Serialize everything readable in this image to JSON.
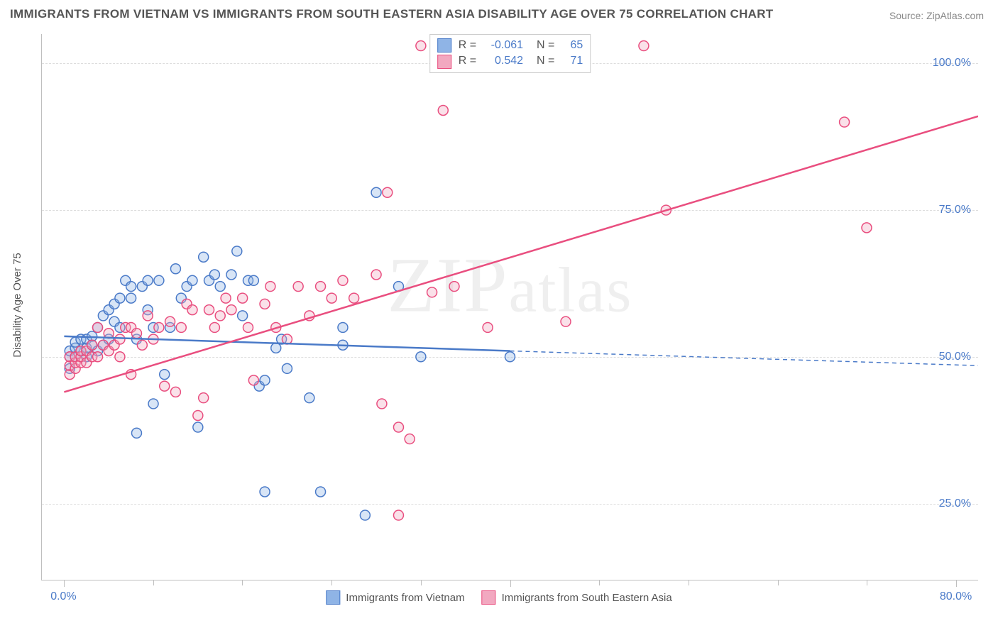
{
  "title": "IMMIGRANTS FROM VIETNAM VS IMMIGRANTS FROM SOUTH EASTERN ASIA DISABILITY AGE OVER 75 CORRELATION CHART",
  "source_prefix": "Source: ",
  "source_name": "ZipAtlas.com",
  "ylabel": "Disability Age Over 75",
  "watermark_parts": [
    "ZIP",
    "atlas"
  ],
  "chart": {
    "type": "scatter",
    "xlim": [
      -2,
      82
    ],
    "ylim": [
      12,
      105
    ],
    "xticks": [
      0,
      40,
      80
    ],
    "xtick_labels": [
      "0.0%",
      "",
      "80.0%"
    ],
    "xminor_ticks": [
      8,
      16,
      24,
      32,
      48,
      56,
      64,
      72
    ],
    "yticks": [
      25,
      50,
      75,
      100
    ],
    "ytick_labels": [
      "25.0%",
      "50.0%",
      "75.0%",
      "100.0%"
    ],
    "grid_color": "#dddddd",
    "axis_color": "#bfbfbf",
    "background_color": "#ffffff",
    "marker_radius": 7,
    "marker_fill_opacity": 0.35,
    "marker_stroke_width": 1.5,
    "line_width": 2.5,
    "series": [
      {
        "name": "Immigrants from Vietnam",
        "color_fill": "#8fb4e6",
        "color_stroke": "#4a7ac8",
        "trend": {
          "x1": 0,
          "y1": 53.5,
          "x2": 40,
          "y2": 51.0,
          "dash_x2": 82,
          "dash_y2": 48.5
        },
        "stats": {
          "R": "-0.061",
          "N": "65"
        },
        "points": [
          [
            0.5,
            48
          ],
          [
            0.5,
            50
          ],
          [
            0.5,
            51
          ],
          [
            1,
            50
          ],
          [
            1,
            51.5
          ],
          [
            1,
            52.5
          ],
          [
            1.5,
            51
          ],
          [
            1.5,
            53
          ],
          [
            2,
            50
          ],
          [
            2,
            51.5
          ],
          [
            2,
            53
          ],
          [
            2.5,
            52
          ],
          [
            2.5,
            53.5
          ],
          [
            3,
            51
          ],
          [
            3,
            55
          ],
          [
            3.5,
            52
          ],
          [
            3.5,
            57
          ],
          [
            4,
            53
          ],
          [
            4,
            58
          ],
          [
            4.5,
            56
          ],
          [
            4.5,
            59
          ],
          [
            5,
            60
          ],
          [
            5,
            55
          ],
          [
            5.5,
            63
          ],
          [
            6,
            60
          ],
          [
            6,
            62
          ],
          [
            6.5,
            53
          ],
          [
            6.5,
            37
          ],
          [
            7,
            62
          ],
          [
            7.5,
            63
          ],
          [
            7.5,
            58
          ],
          [
            8,
            42
          ],
          [
            8,
            55
          ],
          [
            8.5,
            63
          ],
          [
            9,
            47
          ],
          [
            9.5,
            55
          ],
          [
            10,
            65
          ],
          [
            10.5,
            60
          ],
          [
            11,
            62
          ],
          [
            11.5,
            63
          ],
          [
            12,
            38
          ],
          [
            12.5,
            67
          ],
          [
            13,
            63
          ],
          [
            13.5,
            64
          ],
          [
            14,
            62
          ],
          [
            15,
            64
          ],
          [
            15.5,
            68
          ],
          [
            16,
            57
          ],
          [
            16.5,
            63
          ],
          [
            17,
            63
          ],
          [
            17.5,
            45
          ],
          [
            18,
            46
          ],
          [
            18,
            27
          ],
          [
            19,
            51.5
          ],
          [
            19.5,
            53
          ],
          [
            20,
            48
          ],
          [
            22,
            43
          ],
          [
            23,
            27
          ],
          [
            25,
            52
          ],
          [
            25,
            55
          ],
          [
            27,
            23
          ],
          [
            28,
            78
          ],
          [
            30,
            62
          ],
          [
            32,
            50
          ],
          [
            40,
            50
          ]
        ]
      },
      {
        "name": "Immigrants from South Eastern Asia",
        "color_fill": "#f2a8c0",
        "color_stroke": "#e94e7f",
        "trend": {
          "x1": 0,
          "y1": 44.0,
          "x2": 82,
          "y2": 91.0
        },
        "stats": {
          "R": "0.542",
          "N": "71"
        },
        "points": [
          [
            0.5,
            47
          ],
          [
            0.5,
            48.5
          ],
          [
            0.5,
            50
          ],
          [
            1,
            48
          ],
          [
            1,
            49
          ],
          [
            1,
            50
          ],
          [
            1.5,
            49
          ],
          [
            1.5,
            50
          ],
          [
            1.5,
            51
          ],
          [
            2,
            49
          ],
          [
            2,
            51
          ],
          [
            2.5,
            50
          ],
          [
            2.5,
            52
          ],
          [
            3,
            50
          ],
          [
            3,
            55
          ],
          [
            3.5,
            52
          ],
          [
            4,
            51
          ],
          [
            4,
            54
          ],
          [
            4.5,
            52
          ],
          [
            5,
            53
          ],
          [
            5,
            50
          ],
          [
            5.5,
            55
          ],
          [
            6,
            47
          ],
          [
            6,
            55
          ],
          [
            6.5,
            54
          ],
          [
            7,
            52
          ],
          [
            7.5,
            57
          ],
          [
            8,
            53
          ],
          [
            8.5,
            55
          ],
          [
            9,
            45
          ],
          [
            9.5,
            56
          ],
          [
            10,
            44
          ],
          [
            10.5,
            55
          ],
          [
            11,
            59
          ],
          [
            11.5,
            58
          ],
          [
            12,
            40
          ],
          [
            12.5,
            43
          ],
          [
            13,
            58
          ],
          [
            13.5,
            55
          ],
          [
            14,
            57
          ],
          [
            14.5,
            60
          ],
          [
            15,
            58
          ],
          [
            16,
            60
          ],
          [
            16.5,
            55
          ],
          [
            17,
            46
          ],
          [
            18,
            59
          ],
          [
            18.5,
            62
          ],
          [
            19,
            55
          ],
          [
            20,
            53
          ],
          [
            21,
            62
          ],
          [
            22,
            57
          ],
          [
            23,
            62
          ],
          [
            24,
            60
          ],
          [
            25,
            63
          ],
          [
            26,
            60
          ],
          [
            28,
            64
          ],
          [
            28.5,
            42
          ],
          [
            29,
            78
          ],
          [
            30,
            23
          ],
          [
            30,
            38
          ],
          [
            31,
            36
          ],
          [
            32,
            103
          ],
          [
            33,
            61
          ],
          [
            34,
            92
          ],
          [
            35,
            62
          ],
          [
            38,
            55
          ],
          [
            45,
            56
          ],
          [
            52,
            103
          ],
          [
            54,
            75
          ],
          [
            70,
            90
          ],
          [
            72,
            72
          ]
        ]
      }
    ]
  },
  "legend_bottom": [
    {
      "swatch_fill": "#8fb4e6",
      "swatch_stroke": "#4a7ac8",
      "label": "Immigrants from Vietnam"
    },
    {
      "swatch_fill": "#f2a8c0",
      "swatch_stroke": "#e94e7f",
      "label": "Immigrants from South Eastern Asia"
    }
  ],
  "stats_box": [
    {
      "swatch_fill": "#8fb4e6",
      "swatch_stroke": "#4a7ac8",
      "R_label": "R =",
      "R": "-0.061",
      "N_label": "N =",
      "N": "65"
    },
    {
      "swatch_fill": "#f2a8c0",
      "swatch_stroke": "#e94e7f",
      "R_label": "R =",
      "R": " 0.542",
      "N_label": "N =",
      "N": "71"
    }
  ]
}
